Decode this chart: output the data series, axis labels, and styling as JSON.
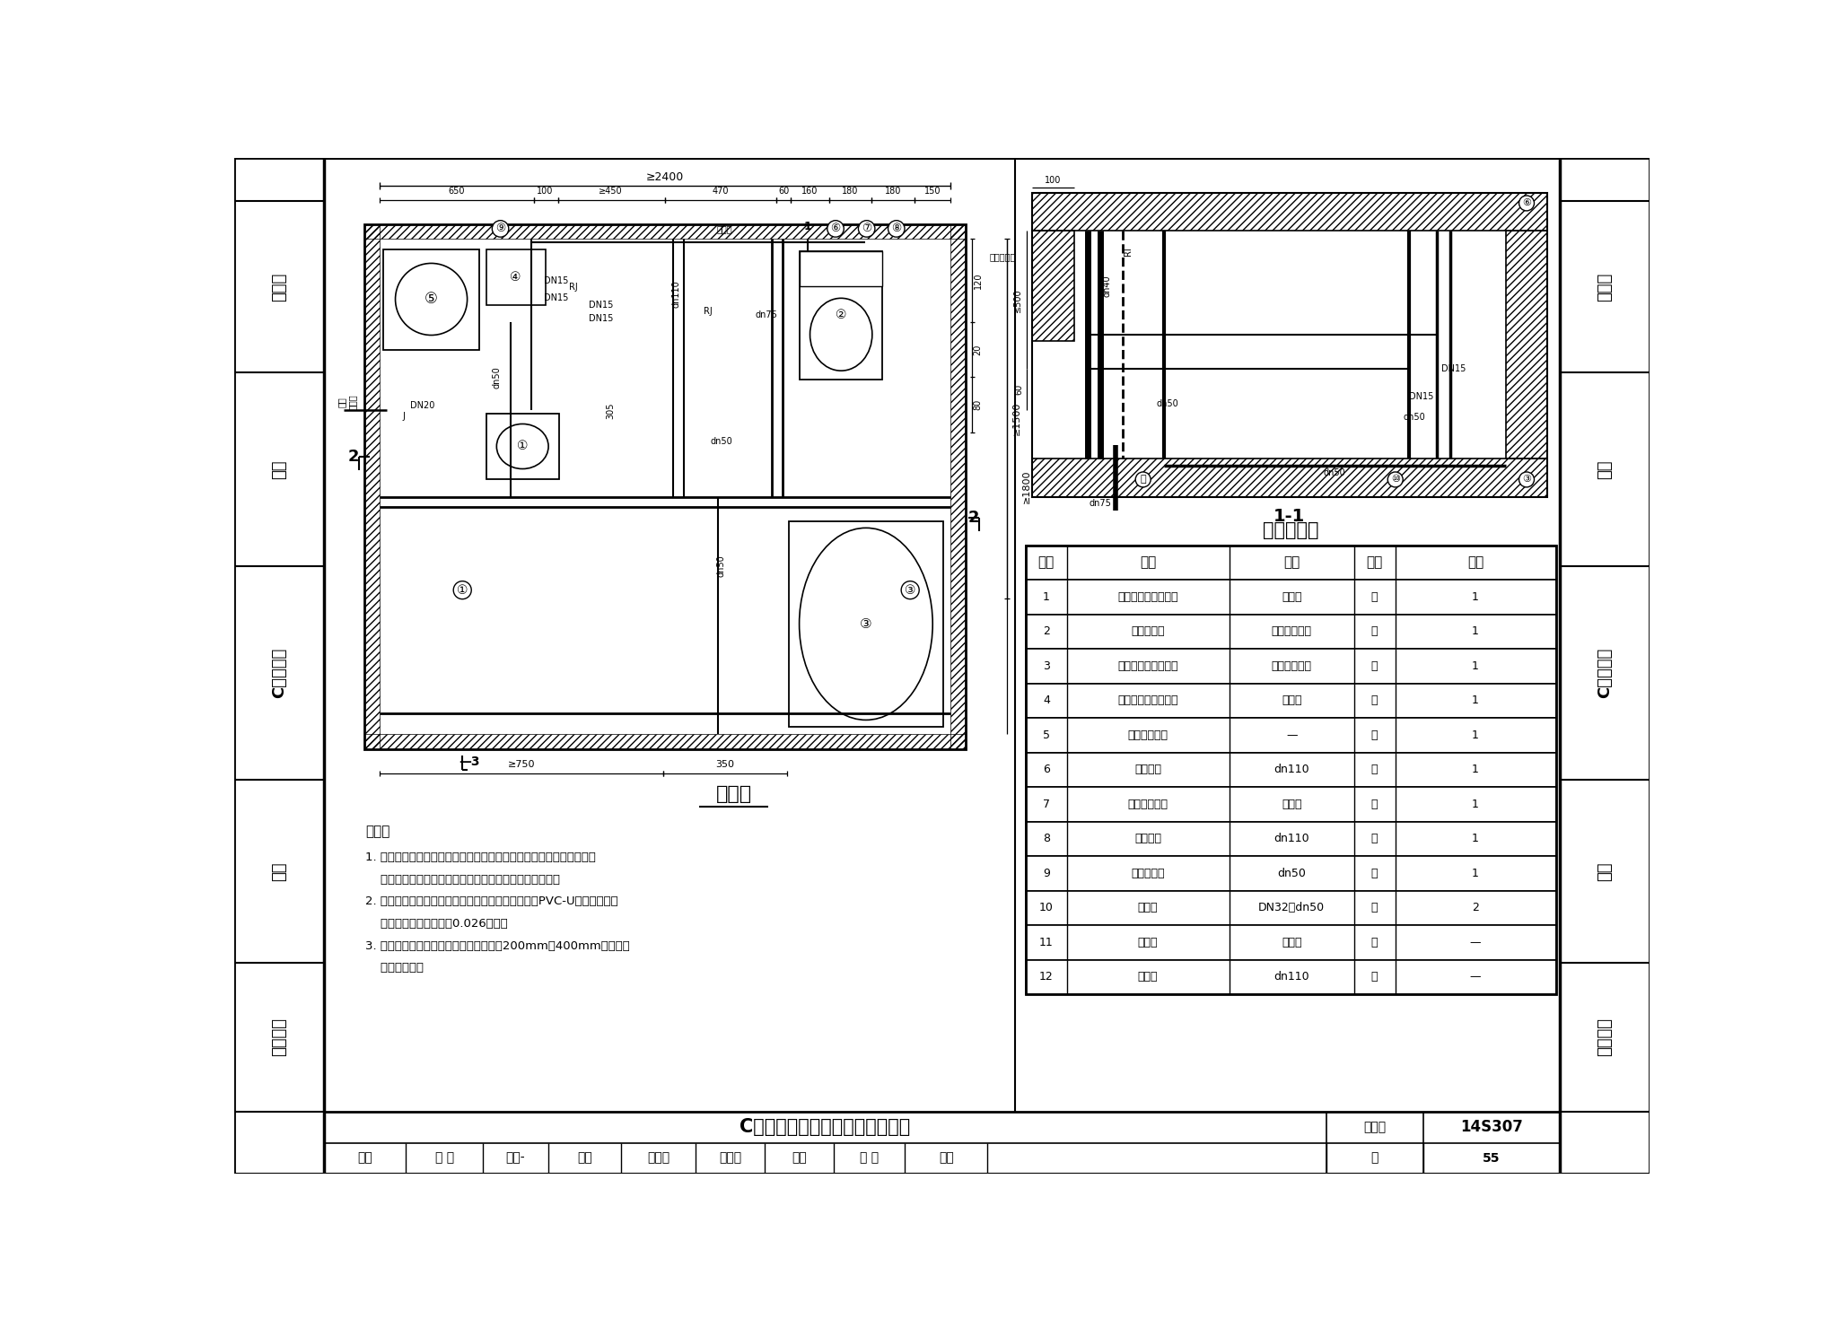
{
  "page_bg": "#ffffff",
  "left_labels": [
    "总说明",
    "厨房",
    "C型卫生间",
    "阳台",
    "节点详图"
  ],
  "right_labels": [
    "总说明",
    "厨房",
    "C型卫生间",
    "阳台",
    "节点详图"
  ],
  "main_title": "C型卫生间给排水管道安装方案三",
  "drawing_title": "平面图",
  "section_title": "1-1",
  "table_title": "主要设备表",
  "table_headers": [
    "编号",
    "名称",
    "规格",
    "单位",
    "数量"
  ],
  "table_rows": [
    [
      "1",
      "单柄混合水嘴洗脸盆",
      "挂墙式",
      "套",
      "1"
    ],
    [
      "2",
      "坐式大便器",
      "分体式下排水",
      "套",
      "1"
    ],
    [
      "3",
      "单柄水嘴无裙边浴盆",
      "铸铁或亚克力",
      "套",
      "1"
    ],
    [
      "4",
      "卧挂储水式电热水器",
      "按设计",
      "套",
      "1"
    ],
    [
      "5",
      "全自动洗衣机",
      "—",
      "套",
      "1"
    ],
    [
      "6",
      "污水立管",
      "dn110",
      "根",
      "1"
    ],
    [
      "7",
      "专用通气立管",
      "按设计",
      "根",
      "1"
    ],
    [
      "8",
      "废水立管",
      "dn110",
      "根",
      "1"
    ],
    [
      "9",
      "有水封地漏",
      "dn50",
      "个",
      "1"
    ],
    [
      "10",
      "存水弯",
      "DN32、dn50",
      "个",
      "2"
    ],
    [
      "11",
      "伸缩节",
      "按设计",
      "个",
      "—"
    ],
    [
      "12",
      "阻火圈",
      "dn110",
      "个",
      "—"
    ]
  ],
  "note_lines": [
    "说明：",
    "1. 本图给水管采用枝状供水；敷设在吊顶内时，用实线表示；如敷设在",
    "    地坪装饰面层以下的水泥砂浆结合层内时，用虚线表示。",
    "2. 本图排水设计为污废水分流系统，按硬聚氯乙烯（PVC-U）排水管及配",
    "    件、排水横支管坡度为0.026绘制。",
    "3. 本卫生间平面布置同时也适用于坑距为200mm、400mm等尺寸的",
    "    坐式大便器。"
  ],
  "footer_title": "C型卫生间给排水管道安装方案三",
  "footer_atlas": "图集号",
  "footer_code": "14S307",
  "footer_page_label": "页",
  "footer_page": "55",
  "footer_row2": "审核 张 淼  张燕-  校对 张文华  沈文早  设计 万 水  万水"
}
